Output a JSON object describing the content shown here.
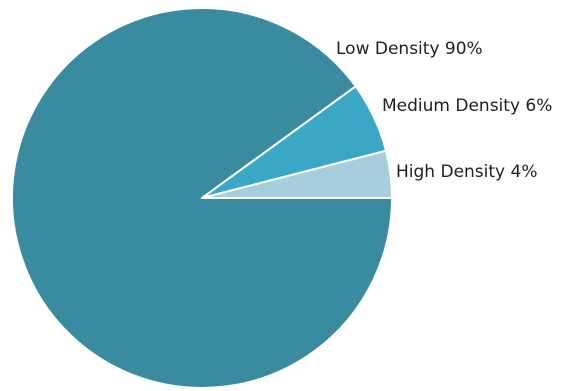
{
  "chart_data": {
    "type": "pie",
    "slices": [
      {
        "name": "Low Density",
        "value": 90,
        "label": "Low Density 90%",
        "color": "#3a8aa0"
      },
      {
        "name": "Medium Density",
        "value": 6,
        "label": "Medium Density 6%",
        "color": "#3aa8c4"
      },
      {
        "name": "High Density",
        "value": 4,
        "label": "High Density 4%",
        "color": "#a7cedc"
      }
    ],
    "start_angle_deg": 0,
    "direction": "counterclockwise",
    "legend": "none",
    "labels": "outside-right"
  }
}
